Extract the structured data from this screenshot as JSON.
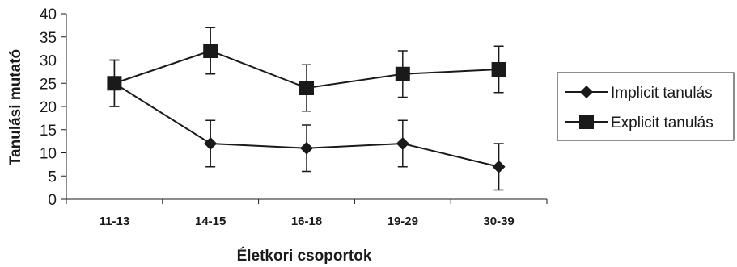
{
  "chart_data": {
    "type": "line",
    "categories": [
      "11-13",
      "14-15",
      "16-18",
      "19-29",
      "30-39"
    ],
    "series": [
      {
        "name": "Implicit tanulás",
        "marker": "diamond",
        "values": [
          25,
          12,
          11,
          12,
          7
        ],
        "err_low": [
          20,
          7,
          6,
          7,
          2
        ],
        "err_high": [
          30,
          17,
          16,
          17,
          12
        ]
      },
      {
        "name": "Explicit tanulás",
        "marker": "square",
        "values": [
          25,
          32,
          24,
          27,
          28
        ],
        "err_low": [
          20,
          27,
          19,
          22,
          23
        ],
        "err_high": [
          30,
          37,
          29,
          32,
          33
        ]
      }
    ],
    "xlabel": "Életkori csoportok",
    "ylabel": "Tanulási mutató",
    "ylim": [
      0,
      40
    ],
    "yticks": [
      0,
      5,
      10,
      15,
      20,
      25,
      30,
      35,
      40
    ],
    "grid": false,
    "legend_position": "right",
    "color": "#1a1a1a"
  }
}
